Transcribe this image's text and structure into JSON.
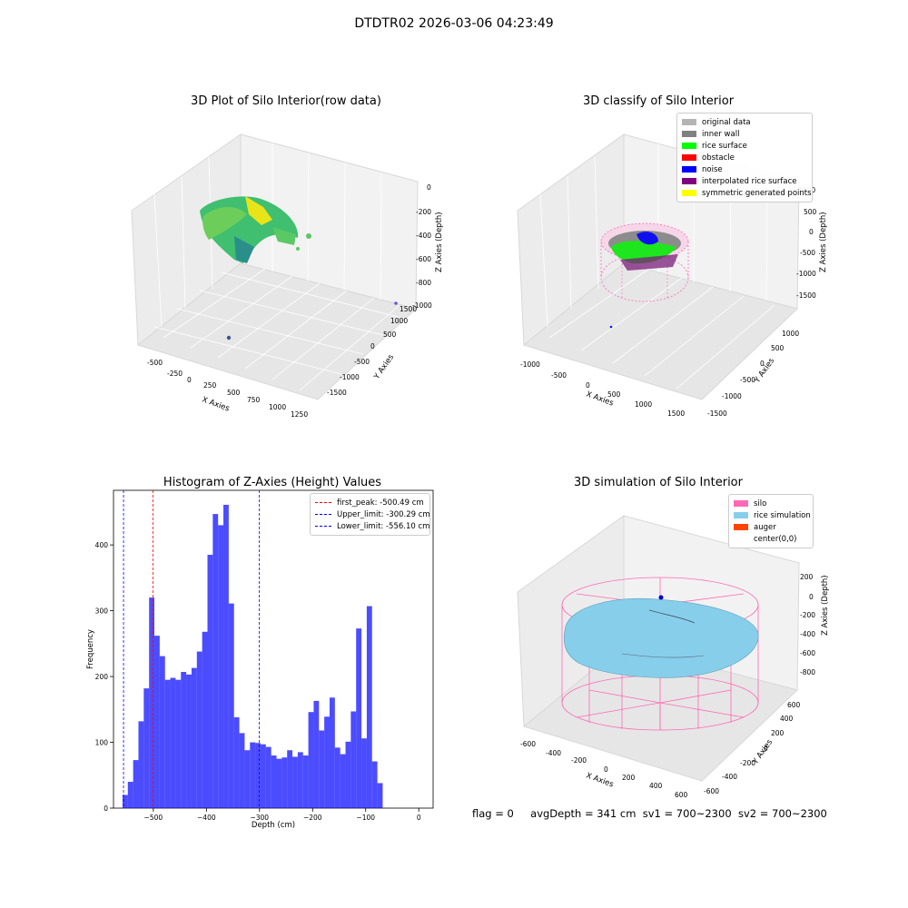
{
  "suptitle": "DTDTR02 2026-03-06 04:23:49",
  "panels": {
    "raw": {
      "title": "3D Plot of Silo Interior(row data)",
      "x_label": "X Axies",
      "y_label": "Y Axies",
      "z_label": "Z Axies (Depth)",
      "x_ticks": [
        "-500",
        "-250",
        "0",
        "250",
        "500",
        "750",
        "1000",
        "1250"
      ],
      "y_ticks": [
        "-1500",
        "-1000",
        "-500",
        "0",
        "500",
        "1000",
        "1500"
      ],
      "z_ticks": [
        "0",
        "-200",
        "-400",
        "-600",
        "-800",
        "-1000"
      ]
    },
    "classify": {
      "title": "3D classify of Silo Interior",
      "x_label": "X Axies",
      "y_label": "Y Axies",
      "z_label": "Z Axies (Depth)",
      "x_ticks": [
        "-1000",
        "-500",
        "0",
        "500",
        "1000",
        "1500"
      ],
      "y_ticks": [
        "-1500",
        "-1000",
        "-500",
        "0",
        "500",
        "1000"
      ],
      "z_ticks": [
        "1000",
        "500",
        "0",
        "-500",
        "-1000",
        "-1500"
      ],
      "legend": [
        {
          "label": "original data",
          "color": "#b4b4b4"
        },
        {
          "label": "inner wall",
          "color": "#808080"
        },
        {
          "label": "rice surface",
          "color": "#00ff00"
        },
        {
          "label": "obstacle",
          "color": "#ff0000"
        },
        {
          "label": "noise",
          "color": "#0000ff"
        },
        {
          "label": "interpolated rice surface",
          "color": "#800080"
        },
        {
          "label": "symmetric generated points",
          "color": "#ffff00"
        }
      ]
    },
    "simulation": {
      "title": "3D simulation of Silo Interior",
      "x_label": "X Axies",
      "y_label": "Y Axies",
      "z_label": "Z Axies (Depth)",
      "x_ticks": [
        "-600",
        "-400",
        "-200",
        "0",
        "200",
        "400",
        "600"
      ],
      "y_ticks": [
        "-600",
        "-400",
        "-200",
        "0",
        "200",
        "400",
        "600"
      ],
      "z_ticks": [
        "200",
        "0",
        "-200",
        "-400",
        "-600",
        "-800"
      ],
      "legend": [
        {
          "label": "silo",
          "color": "#ff69b4"
        },
        {
          "label": "rice simulation",
          "color": "#87ceeb"
        },
        {
          "label": "auger",
          "color": "#ff4500"
        },
        {
          "label": "center(0,0)",
          "color": "#ffffff"
        }
      ]
    }
  },
  "chart_data": {
    "type": "bar",
    "title": "Histogram of Z-Axies (Height) Values",
    "xlabel": "Depth (cm)",
    "ylabel": "Frequency",
    "xlim": [
      -575,
      27
    ],
    "ylim": [
      0,
      483
    ],
    "x_ticks": [
      -500,
      -400,
      -300,
      -200,
      -100,
      0
    ],
    "y_ticks": [
      0,
      100,
      200,
      300,
      400
    ],
    "bar_color": "#0000ff",
    "bin_start": -558,
    "bin_width": 10,
    "values": [
      20,
      40,
      73,
      132,
      182,
      320,
      262,
      231,
      195,
      198,
      195,
      207,
      203,
      213,
      238,
      268,
      385,
      447,
      430,
      461,
      311,
      138,
      114,
      88,
      100,
      99,
      97,
      93,
      80,
      75,
      77,
      88,
      78,
      85,
      80,
      146,
      163,
      118,
      139,
      168,
      92,
      82,
      101,
      147,
      273,
      106,
      307,
      71,
      38
    ],
    "vlines": [
      {
        "label": "first_peak: -500.49 cm",
        "x": -500.49,
        "color": "#ff0000"
      },
      {
        "label": "Upper_limit: -300.29 cm",
        "x": -300.29,
        "color": "#0000ff"
      },
      {
        "label": "Lower_limit: -556.10 cm",
        "x": -556.1,
        "color": "#0000ff"
      }
    ],
    "legend_position": "upper right"
  },
  "footer": {
    "flag": "flag = 0",
    "avg": "avgDepth = 341 cm",
    "sv1": "sv1 = 700~2300",
    "sv2": "sv2 = 700~2300"
  }
}
